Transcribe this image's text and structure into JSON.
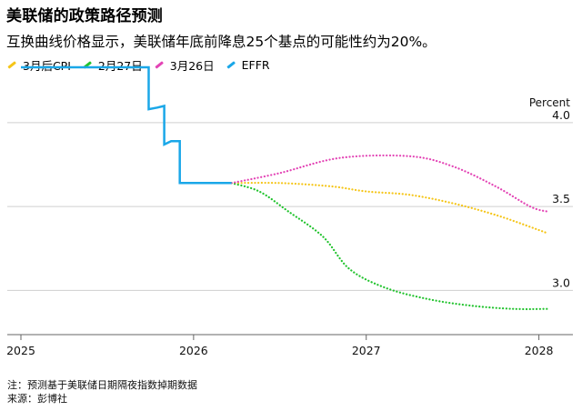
{
  "title": "美联储的政策路径预测",
  "subtitle": "互换曲线价格显示，美联储年底前降息25个基点的可能性约为20%。",
  "legend": [
    {
      "label": "3月后CPI",
      "color": "#f5c518"
    },
    {
      "label": "2月27日",
      "color": "#22c32e"
    },
    {
      "label": "3月26日",
      "color": "#e344b5"
    },
    {
      "label": "EFFR",
      "color": "#1aa7e8"
    }
  ],
  "footer": {
    "note": "注：预测基于美联储日期隔夜指数掉期数据",
    "source": "来源：彭博社"
  },
  "chart_data": {
    "type": "line",
    "y_unit_label": "Percent",
    "ylim": [
      2.78,
      4.2
    ],
    "y_ticks": [
      3.0,
      3.5,
      4.0
    ],
    "y_tick_labels": [
      "3.0",
      "3.5",
      "4.0"
    ],
    "xlim": [
      2025.0,
      2028.06
    ],
    "x_ticks": [
      2025,
      2026,
      2027,
      2028
    ],
    "x_tick_labels": [
      "2025",
      "2026",
      "2027",
      "2028"
    ],
    "grid": "horizontal",
    "series": [
      {
        "name": "EFFR",
        "color": "#1aa7e8",
        "style": "solid",
        "points": [
          [
            2025.0,
            4.33
          ],
          [
            2025.74,
            4.33
          ],
          [
            2025.74,
            4.08
          ],
          [
            2025.79,
            4.09
          ],
          [
            2025.83,
            4.1
          ],
          [
            2025.83,
            3.87
          ],
          [
            2025.87,
            3.89
          ],
          [
            2025.92,
            3.89
          ],
          [
            2025.92,
            3.64
          ],
          [
            2026.22,
            3.64
          ]
        ]
      },
      {
        "name": "3月后CPI",
        "color": "#f5c518",
        "style": "dotted",
        "points": [
          [
            2026.22,
            3.64
          ],
          [
            2026.5,
            3.64
          ],
          [
            2026.8,
            3.62
          ],
          [
            2027.0,
            3.59
          ],
          [
            2027.25,
            3.57
          ],
          [
            2027.5,
            3.52
          ],
          [
            2027.75,
            3.45
          ],
          [
            2028.0,
            3.36
          ],
          [
            2028.05,
            3.34
          ]
        ]
      },
      {
        "name": "2月27日",
        "color": "#22c32e",
        "style": "dotted",
        "points": [
          [
            2026.22,
            3.64
          ],
          [
            2026.38,
            3.59
          ],
          [
            2026.55,
            3.47
          ],
          [
            2026.75,
            3.32
          ],
          [
            2026.9,
            3.13
          ],
          [
            2027.1,
            3.02
          ],
          [
            2027.35,
            2.95
          ],
          [
            2027.6,
            2.91
          ],
          [
            2027.85,
            2.89
          ],
          [
            2028.05,
            2.89
          ]
        ]
      },
      {
        "name": "3月26日",
        "color": "#e344b5",
        "style": "dotted",
        "points": [
          [
            2026.22,
            3.64
          ],
          [
            2026.5,
            3.7
          ],
          [
            2026.85,
            3.79
          ],
          [
            2027.25,
            3.8
          ],
          [
            2027.5,
            3.74
          ],
          [
            2027.75,
            3.62
          ],
          [
            2027.95,
            3.5
          ],
          [
            2028.05,
            3.47
          ]
        ]
      }
    ]
  }
}
